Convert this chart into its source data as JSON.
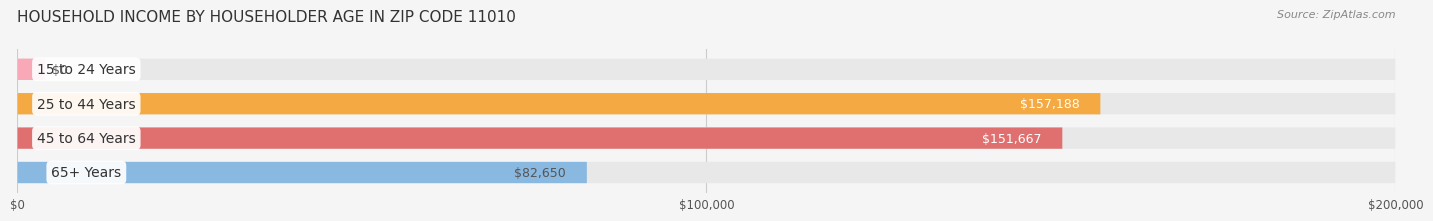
{
  "title": "HOUSEHOLD INCOME BY HOUSEHOLDER AGE IN ZIP CODE 11010",
  "source": "Source: ZipAtlas.com",
  "categories": [
    "15 to 24 Years",
    "25 to 44 Years",
    "45 to 64 Years",
    "65+ Years"
  ],
  "values": [
    0,
    157188,
    151667,
    82650
  ],
  "bar_colors": [
    "#f9a8b8",
    "#f5a942",
    "#e07070",
    "#89b8e0"
  ],
  "label_colors": [
    "#555555",
    "#ffffff",
    "#ffffff",
    "#555555"
  ],
  "bar_labels": [
    "$0",
    "$157,188",
    "$151,667",
    "$82,650"
  ],
  "xlim": [
    0,
    200000
  ],
  "xticks": [
    0,
    100000,
    200000
  ],
  "xtick_labels": [
    "$0",
    "$100,000",
    "$200,000"
  ],
  "background_color": "#f5f5f5",
  "bar_bg_color": "#e8e8e8",
  "title_fontsize": 11,
  "source_fontsize": 8,
  "label_fontsize": 9,
  "category_fontsize": 10
}
